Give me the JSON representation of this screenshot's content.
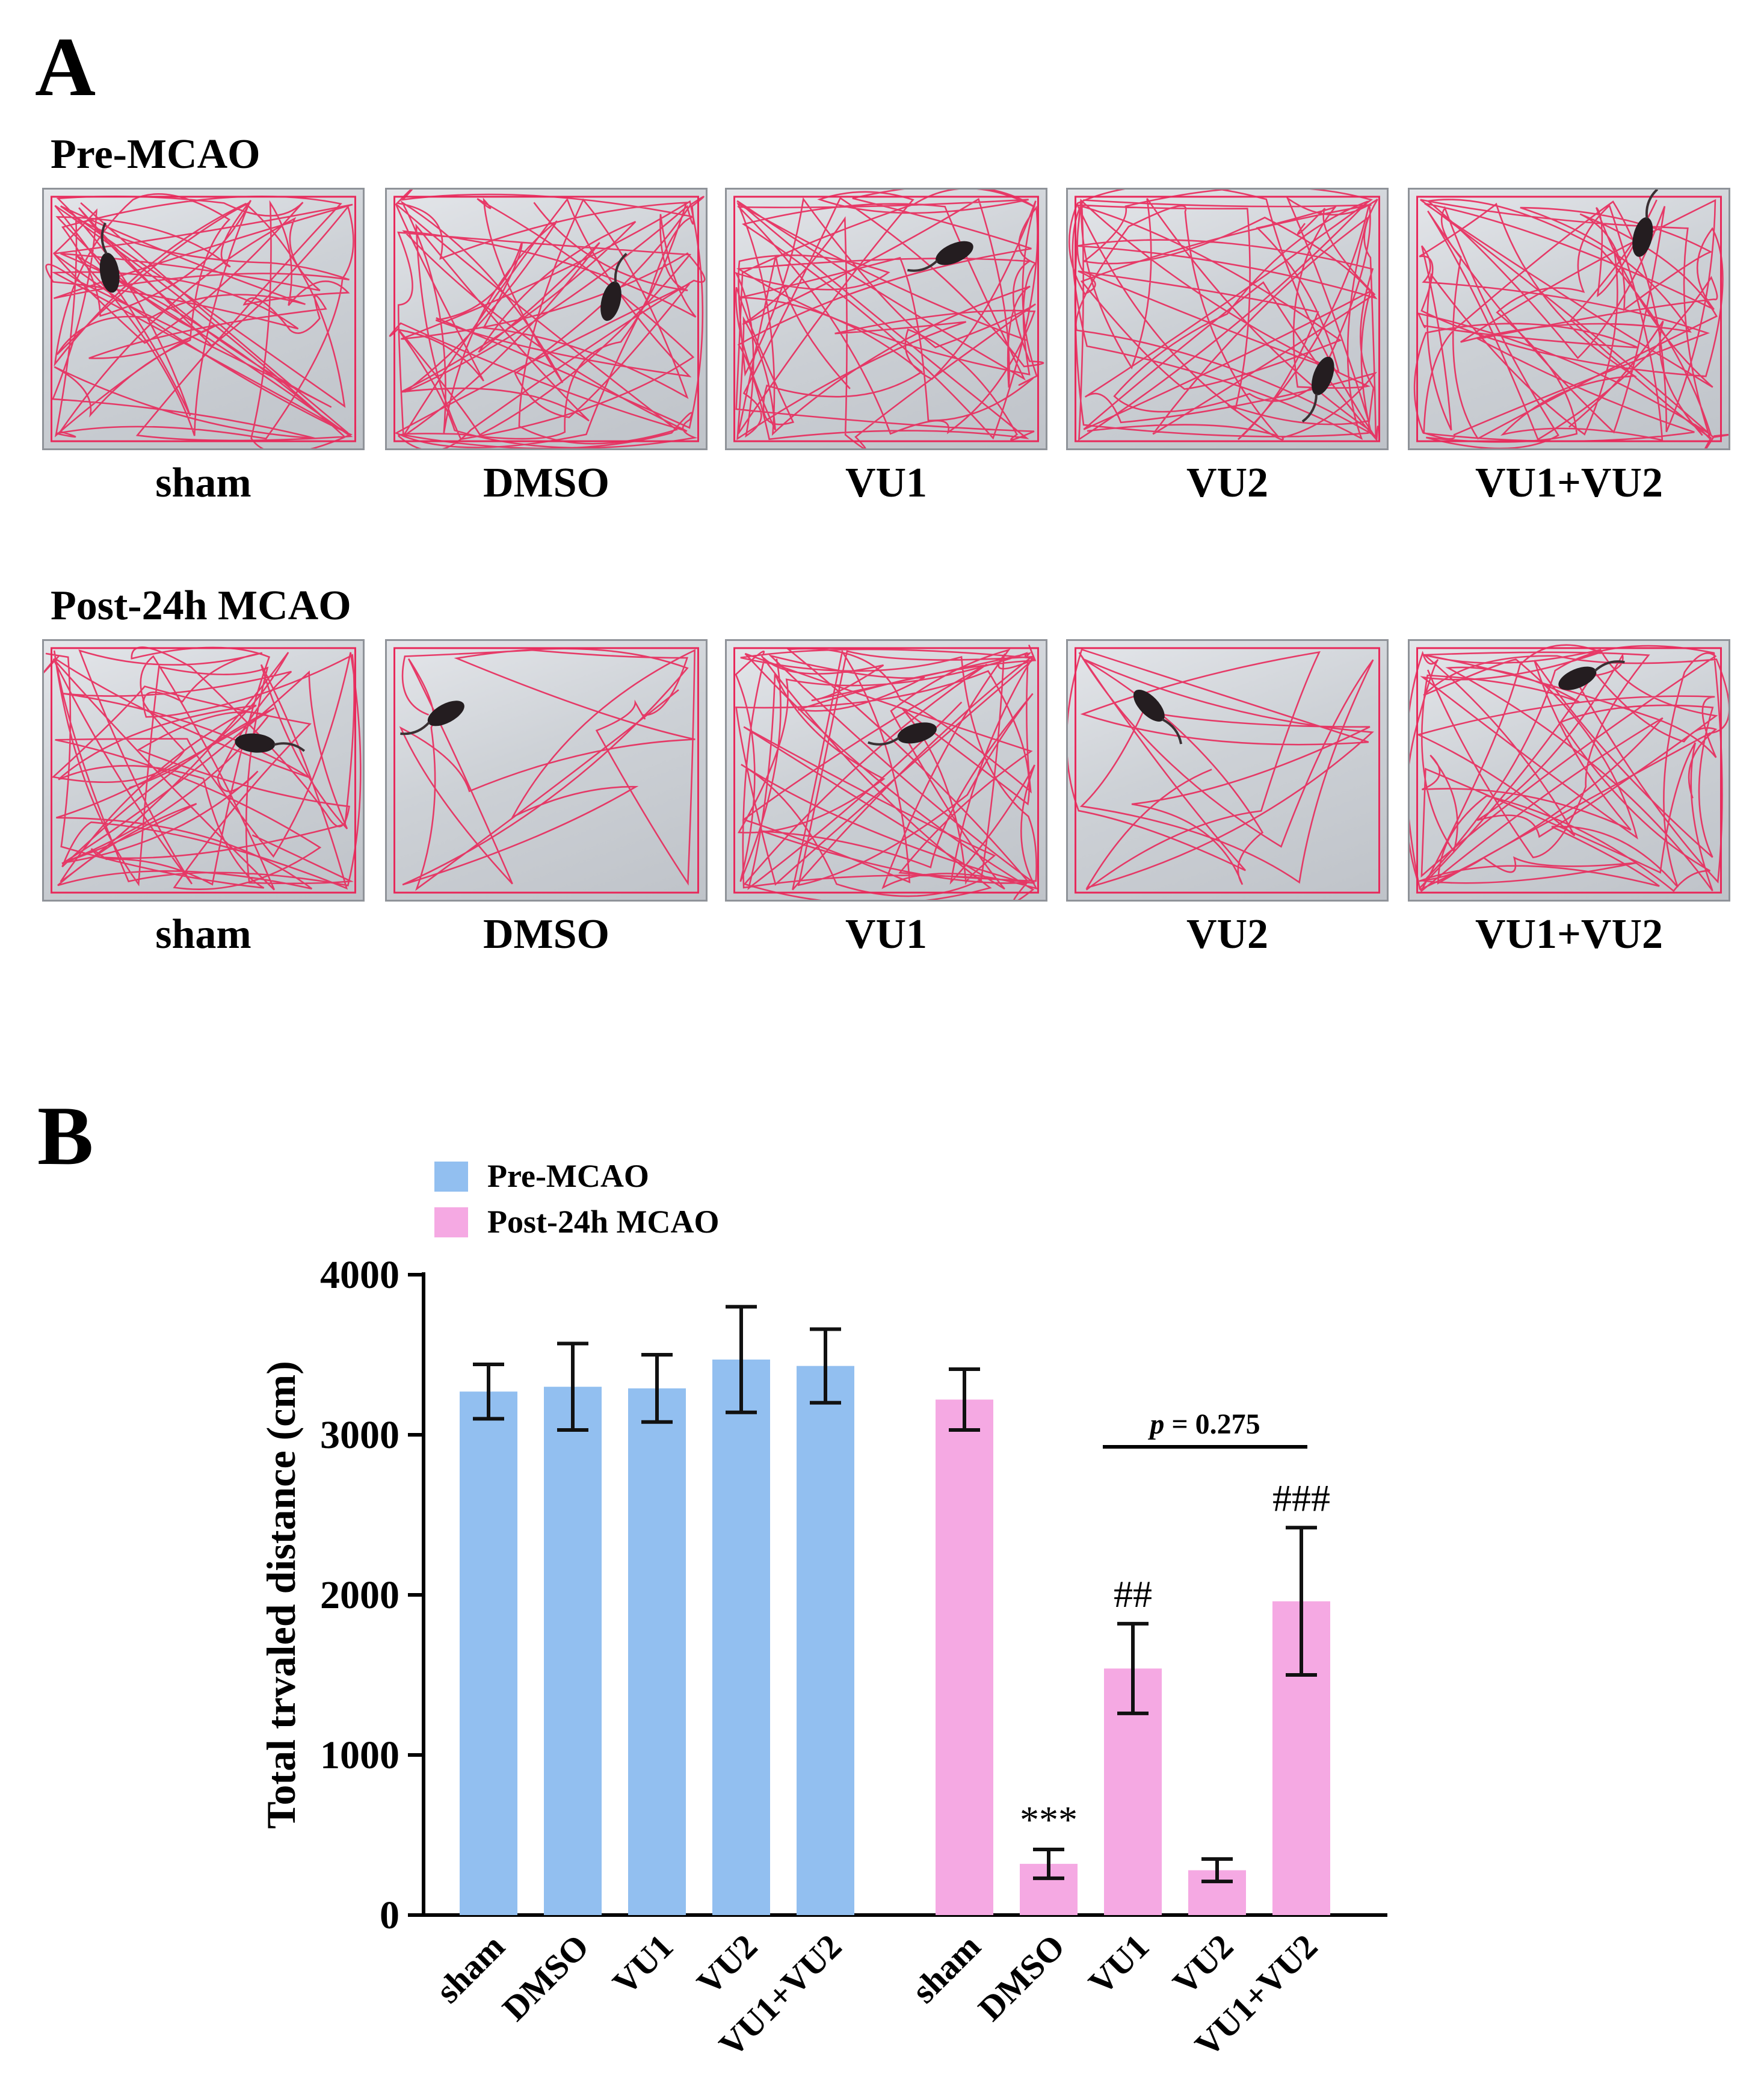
{
  "panel_a": {
    "letter": "A",
    "rows": [
      {
        "title": "Pre-MCAO",
        "groups": [
          "sham",
          "DMSO",
          "VU1",
          "VU2",
          "VU1+VU2"
        ],
        "track_color": "#e8285a"
      },
      {
        "title": "Post-24h MCAO",
        "groups": [
          "sham",
          "DMSO",
          "VU1",
          "VU2",
          "VU1+VU2"
        ],
        "track_color": "#e8285a"
      }
    ]
  },
  "panel_b": {
    "letter": "B"
  },
  "chart_data": {
    "type": "bar",
    "title": "",
    "xlabel": "",
    "ylabel": "Total trvaled distance (cm)",
    "ylim": [
      0,
      4000
    ],
    "yticks": [
      "0",
      "1000",
      "2000",
      "3000",
      "4000"
    ],
    "legend_placement": "top-left",
    "grid": false,
    "series": [
      {
        "name": "Pre-MCAO",
        "color": "#92bff0",
        "categories": [
          "sham",
          "DMSO",
          "VU1",
          "VU2",
          "VU1+VU2"
        ],
        "values": [
          3270,
          3300,
          3290,
          3470,
          3430
        ],
        "errors": [
          170,
          270,
          210,
          330,
          230
        ]
      },
      {
        "name": "Post-24h MCAO",
        "color": "#f5a9e3",
        "categories": [
          "sham",
          "DMSO",
          "VU1",
          "VU2",
          "VU1+VU2"
        ],
        "values": [
          3220,
          320,
          1540,
          280,
          1960
        ],
        "errors": [
          190,
          90,
          280,
          70,
          460
        ]
      }
    ],
    "annotations": [
      {
        "series": 1,
        "index": 1,
        "text": "***"
      },
      {
        "series": 1,
        "index": 2,
        "text": "##"
      },
      {
        "series": 1,
        "index": 4,
        "text": "###"
      }
    ],
    "bracket": {
      "series": 1,
      "from_index": 2,
      "to_index": 4,
      "label_italic": "p",
      "label_rest": " = 0.275"
    }
  }
}
